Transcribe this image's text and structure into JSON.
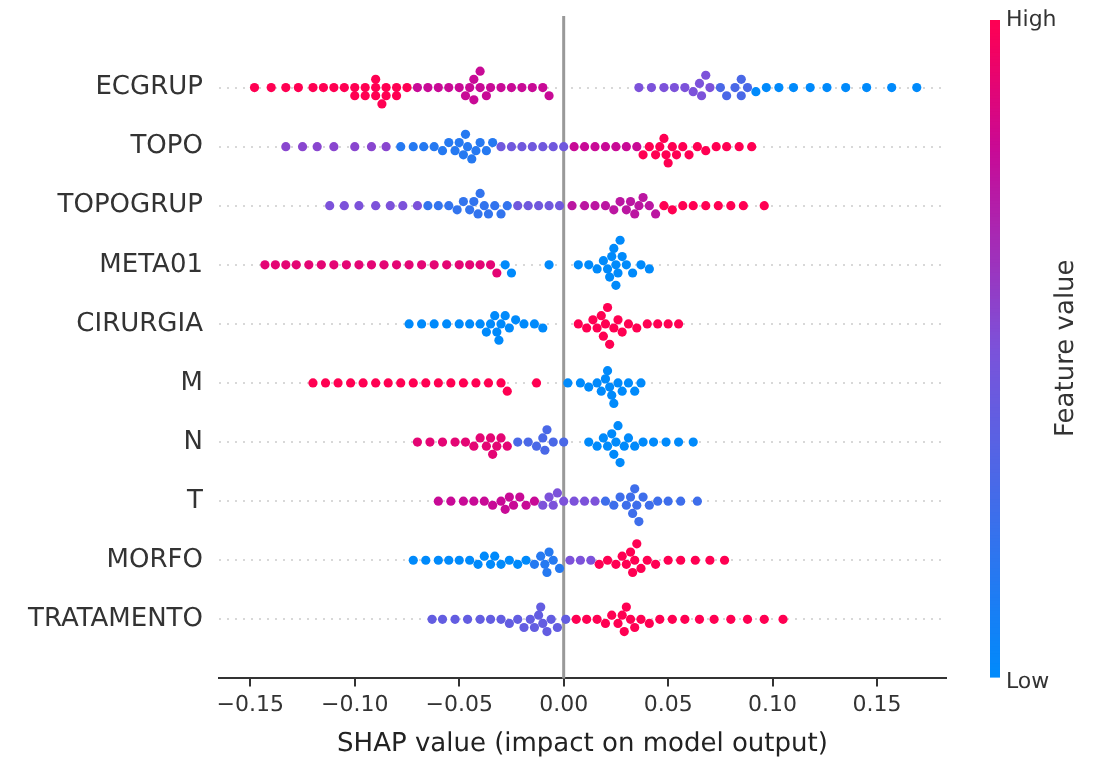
{
  "chart_data": {
    "type": "scatter",
    "orientation": "horizontal",
    "xlabel": "SHAP value (impact on model output)",
    "clabel": "Feature value",
    "categories": [
      "ECGRUP",
      "TOPO",
      "TOPOGRUP",
      "META01",
      "CIRURGIA",
      "M",
      "N",
      "T",
      "MORFO",
      "TRATAMENTO"
    ],
    "xlim": [
      -0.165,
      0.183
    ],
    "xticks": [
      {
        "value": -0.15,
        "label": "−0.15"
      },
      {
        "value": -0.1,
        "label": "−0.10"
      },
      {
        "value": -0.05,
        "label": "−0.05"
      },
      {
        "value": 0,
        "label": "0.00"
      },
      {
        "value": 0.05,
        "label": "0.05"
      },
      {
        "value": 0.1,
        "label": "0.10"
      },
      {
        "value": 0.15,
        "label": "0.15"
      }
    ],
    "clim": [
      0,
      1
    ],
    "cticks": [
      {
        "value": 0,
        "label": "Low"
      },
      {
        "value": 1,
        "label": "High"
      }
    ],
    "grid": "y",
    "legend": false,
    "marker": "circle",
    "ref_lines": [
      {
        "axis": "x",
        "value": 0,
        "color": "#999999"
      }
    ],
    "series": [
      {
        "x": [
          "ECGRUP",
          "ECGRUP",
          "ECGRUP",
          "ECGRUP",
          "ECGRUP",
          "ECGRUP",
          "ECGRUP",
          "ECGRUP",
          "ECGRUP",
          "ECGRUP",
          "ECGRUP",
          "ECGRUP",
          "ECGRUP",
          "ECGRUP",
          "ECGRUP",
          "ECGRUP",
          "ECGRUP",
          "ECGRUP",
          "ECGRUP",
          "ECGRUP",
          "ECGRUP",
          "ECGRUP",
          "ECGRUP",
          "ECGRUP",
          "ECGRUP",
          "ECGRUP",
          "ECGRUP",
          "ECGRUP",
          "ECGRUP",
          "ECGRUP",
          "ECGRUP",
          "ECGRUP",
          "ECGRUP",
          "ECGRUP",
          "ECGRUP",
          "ECGRUP",
          "ECGRUP",
          "ECGRUP",
          "ECGRUP",
          "ECGRUP",
          "ECGRUP",
          "ECGRUP",
          "ECGRUP",
          "ECGRUP",
          "ECGRUP",
          "ECGRUP",
          "ECGRUP",
          "ECGRUP",
          "ECGRUP",
          "ECGRUP",
          "ECGRUP",
          "ECGRUP",
          "ECGRUP",
          "ECGRUP",
          "ECGRUP",
          "ECGRUP",
          "ECGRUP",
          "ECGRUP",
          "ECGRUP",
          "ECGRUP",
          "ECGRUP",
          "ECGRUP",
          "ECGRUP",
          "ECGRUP",
          "ECGRUP",
          "ECGRUP",
          "TOPO",
          "TOPO",
          "TOPO",
          "TOPO",
          "TOPO",
          "TOPO",
          "TOPO",
          "TOPO",
          "TOPO",
          "TOPO",
          "TOPO",
          "TOPO",
          "TOPO",
          "TOPO",
          "TOPO",
          "TOPO",
          "TOPO",
          "TOPO",
          "TOPO",
          "TOPO",
          "TOPO",
          "TOPO",
          "TOPO",
          "TOPO",
          "TOPO",
          "TOPO",
          "TOPO",
          "TOPO",
          "TOPO",
          "TOPO",
          "TOPO",
          "TOPO",
          "TOPO",
          "TOPO",
          "TOPO",
          "TOPO",
          "TOPO",
          "TOPO",
          "TOPO",
          "TOPO",
          "TOPO",
          "TOPO",
          "TOPO",
          "TOPO",
          "TOPO",
          "TOPO",
          "TOPO",
          "TOPO",
          "TOPO",
          "TOPO",
          "TOPO",
          "TOPO",
          "TOPO",
          "TOPO",
          "TOPOGRUP",
          "TOPOGRUP",
          "TOPOGRUP",
          "TOPOGRUP",
          "TOPOGRUP",
          "TOPOGRUP",
          "TOPOGRUP",
          "TOPOGRUP",
          "TOPOGRUP",
          "TOPOGRUP",
          "TOPOGRUP",
          "TOPOGRUP",
          "TOPOGRUP",
          "TOPOGRUP",
          "TOPOGRUP",
          "TOPOGRUP",
          "TOPOGRUP",
          "TOPOGRUP",
          "TOPOGRUP",
          "TOPOGRUP",
          "TOPOGRUP",
          "TOPOGRUP",
          "TOPOGRUP",
          "TOPOGRUP",
          "TOPOGRUP",
          "TOPOGRUP",
          "TOPOGRUP",
          "TOPOGRUP",
          "TOPOGRUP",
          "TOPOGRUP",
          "TOPOGRUP",
          "TOPOGRUP",
          "TOPOGRUP",
          "TOPOGRUP",
          "TOPOGRUP",
          "TOPOGRUP",
          "TOPOGRUP",
          "TOPOGRUP",
          "TOPOGRUP",
          "TOPOGRUP",
          "TOPOGRUP",
          "TOPOGRUP",
          "TOPOGRUP",
          "TOPOGRUP",
          "TOPOGRUP",
          "TOPOGRUP",
          "TOPOGRUP",
          "TOPOGRUP",
          "META01",
          "META01",
          "META01",
          "META01",
          "META01",
          "META01",
          "META01",
          "META01",
          "META01",
          "META01",
          "META01",
          "META01",
          "META01",
          "META01",
          "META01",
          "META01",
          "META01",
          "META01",
          "META01",
          "META01",
          "META01",
          "META01",
          "META01",
          "META01",
          "META01",
          "META01",
          "META01",
          "META01",
          "META01",
          "META01",
          "META01",
          "META01",
          "META01",
          "META01",
          "META01",
          "META01",
          "META01",
          "META01",
          "META01",
          "META01",
          "META01",
          "CIRURGIA",
          "CIRURGIA",
          "CIRURGIA",
          "CIRURGIA",
          "CIRURGIA",
          "CIRURGIA",
          "CIRURGIA",
          "CIRURGIA",
          "CIRURGIA",
          "CIRURGIA",
          "CIRURGIA",
          "CIRURGIA",
          "CIRURGIA",
          "CIRURGIA",
          "CIRURGIA",
          "CIRURGIA",
          "CIRURGIA",
          "CIRURGIA",
          "CIRURGIA",
          "CIRURGIA",
          "CIRURGIA",
          "CIRURGIA",
          "CIRURGIA",
          "CIRURGIA",
          "CIRURGIA",
          "CIRURGIA",
          "CIRURGIA",
          "CIRURGIA",
          "CIRURGIA",
          "CIRURGIA",
          "CIRURGIA",
          "CIRURGIA",
          "CIRURGIA",
          "CIRURGIA",
          "CIRURGIA",
          "CIRURGIA",
          "CIRURGIA",
          "M",
          "M",
          "M",
          "M",
          "M",
          "M",
          "M",
          "M",
          "M",
          "M",
          "M",
          "M",
          "M",
          "M",
          "M",
          "M",
          "M",
          "M",
          "M",
          "M",
          "M",
          "M",
          "M",
          "M",
          "M",
          "M",
          "M",
          "M",
          "M",
          "M",
          "M",
          "M",
          "M",
          "N",
          "N",
          "N",
          "N",
          "N",
          "N",
          "N",
          "N",
          "N",
          "N",
          "N",
          "N",
          "N",
          "N",
          "N",
          "N",
          "N",
          "N",
          "N",
          "N",
          "N",
          "N",
          "N",
          "N",
          "N",
          "N",
          "N",
          "N",
          "N",
          "N",
          "N",
          "N",
          "N",
          "N",
          "N",
          "N",
          "N",
          "N",
          "T",
          "T",
          "T",
          "T",
          "T",
          "T",
          "T",
          "T",
          "T",
          "T",
          "T",
          "T",
          "T",
          "T",
          "T",
          "T",
          "T",
          "T",
          "T",
          "T",
          "T",
          "T",
          "T",
          "T",
          "T",
          "T",
          "T",
          "T",
          "T",
          "T",
          "T",
          "T",
          "T",
          "T",
          "T",
          "T",
          "MORFO",
          "MORFO",
          "MORFO",
          "MORFO",
          "MORFO",
          "MORFO",
          "MORFO",
          "MORFO",
          "MORFO",
          "MORFO",
          "MORFO",
          "MORFO",
          "MORFO",
          "MORFO",
          "MORFO",
          "MORFO",
          "MORFO",
          "MORFO",
          "MORFO",
          "MORFO",
          "MORFO",
          "MORFO",
          "MORFO",
          "MORFO",
          "MORFO",
          "MORFO",
          "MORFO",
          "MORFO",
          "MORFO",
          "MORFO",
          "MORFO",
          "MORFO",
          "MORFO",
          "MORFO",
          "MORFO",
          "MORFO",
          "MORFO",
          "MORFO",
          "MORFO",
          "MORFO",
          "MORFO",
          "TRATAMENTO",
          "TRATAMENTO",
          "TRATAMENTO",
          "TRATAMENTO",
          "TRATAMENTO",
          "TRATAMENTO",
          "TRATAMENTO",
          "TRATAMENTO",
          "TRATAMENTO",
          "TRATAMENTO",
          "TRATAMENTO",
          "TRATAMENTO",
          "TRATAMENTO",
          "TRATAMENTO",
          "TRATAMENTO",
          "TRATAMENTO",
          "TRATAMENTO",
          "TRATAMENTO",
          "TRATAMENTO",
          "TRATAMENTO",
          "TRATAMENTO",
          "TRATAMENTO",
          "TRATAMENTO",
          "TRATAMENTO",
          "TRATAMENTO",
          "TRATAMENTO",
          "TRATAMENTO",
          "TRATAMENTO",
          "TRATAMENTO",
          "TRATAMENTO",
          "TRATAMENTO",
          "TRATAMENTO",
          "TRATAMENTO",
          "TRATAMENTO",
          "TRATAMENTO",
          "TRATAMENTO",
          "TRATAMENTO",
          "TRATAMENTO",
          "TRATAMENTO",
          "TRATAMENTO",
          "TRATAMENTO"
        ],
        "values": [
          -0.148,
          -0.14,
          -0.133,
          -0.127,
          -0.12,
          -0.115,
          -0.11,
          -0.105,
          -0.1,
          -0.1,
          -0.095,
          -0.095,
          -0.09,
          -0.09,
          -0.09,
          -0.087,
          -0.085,
          -0.085,
          -0.08,
          -0.08,
          -0.075,
          -0.07,
          -0.065,
          -0.06,
          -0.055,
          -0.05,
          -0.047,
          -0.045,
          -0.043,
          -0.043,
          -0.04,
          -0.04,
          -0.037,
          -0.035,
          -0.03,
          -0.025,
          -0.02,
          -0.015,
          -0.01,
          -0.007,
          0.036,
          0.042,
          0.048,
          0.053,
          0.058,
          0.062,
          0.065,
          0.066,
          0.068,
          0.07,
          0.075,
          0.078,
          0.082,
          0.085,
          0.085,
          0.088,
          0.092,
          0.097,
          0.103,
          0.11,
          0.118,
          0.126,
          0.135,
          0.145,
          0.157,
          0.169,
          -0.133,
          -0.125,
          -0.118,
          -0.11,
          -0.1,
          -0.092,
          -0.085,
          -0.078,
          -0.072,
          -0.067,
          -0.062,
          -0.058,
          -0.055,
          -0.052,
          -0.05,
          -0.048,
          -0.047,
          -0.046,
          -0.044,
          -0.042,
          -0.04,
          -0.037,
          -0.034,
          -0.03,
          -0.025,
          -0.02,
          -0.015,
          -0.01,
          -0.005,
          0,
          0.005,
          0.01,
          0.015,
          0.02,
          0.025,
          0.03,
          0.035,
          0.038,
          0.041,
          0.044,
          0.046,
          0.048,
          0.049,
          0.05,
          0.052,
          0.054,
          0.057,
          0.06,
          0.064,
          0.068,
          0.073,
          0.078,
          0.084,
          0.09,
          -0.112,
          -0.105,
          -0.098,
          -0.09,
          -0.083,
          -0.077,
          -0.07,
          -0.065,
          -0.06,
          -0.055,
          -0.051,
          -0.048,
          -0.045,
          -0.043,
          -0.041,
          -0.04,
          -0.038,
          -0.036,
          -0.033,
          -0.03,
          -0.027,
          -0.022,
          -0.017,
          -0.012,
          -0.007,
          -0.002,
          0.004,
          0.01,
          0.015,
          0.02,
          0.024,
          0.027,
          0.03,
          0.032,
          0.034,
          0.036,
          0.038,
          0.041,
          0.044,
          0.048,
          0.052,
          0.057,
          0.062,
          0.068,
          0.074,
          0.08,
          0.086,
          0.096,
          -0.143,
          -0.138,
          -0.133,
          -0.128,
          -0.122,
          -0.116,
          -0.11,
          -0.104,
          -0.098,
          -0.092,
          -0.086,
          -0.08,
          -0.074,
          -0.068,
          -0.062,
          -0.056,
          -0.05,
          -0.045,
          -0.04,
          -0.035,
          -0.032,
          -0.028,
          -0.025,
          -0.007,
          0.007,
          0.012,
          0.016,
          0.019,
          0.021,
          0.022,
          0.023,
          0.024,
          0.025,
          0.025,
          0.026,
          0.027,
          0.028,
          0.03,
          0.033,
          0.037,
          0.041,
          -0.074,
          -0.068,
          -0.062,
          -0.056,
          -0.05,
          -0.045,
          -0.04,
          -0.037,
          -0.035,
          -0.033,
          -0.032,
          -0.031,
          -0.03,
          -0.028,
          -0.026,
          -0.023,
          -0.019,
          -0.014,
          -0.01,
          0.007,
          0.011,
          0.014,
          0.016,
          0.018,
          0.019,
          0.02,
          0.021,
          0.022,
          0.024,
          0.026,
          0.028,
          0.031,
          0.035,
          0.04,
          0.045,
          0.05,
          0.055,
          -0.12,
          -0.114,
          -0.108,
          -0.102,
          -0.096,
          -0.09,
          -0.084,
          -0.078,
          -0.072,
          -0.066,
          -0.06,
          -0.054,
          -0.048,
          -0.042,
          -0.036,
          -0.03,
          -0.027,
          -0.013,
          0.002,
          0.008,
          0.012,
          0.016,
          0.018,
          0.02,
          0.021,
          0.022,
          0.023,
          0.024,
          0.026,
          0.028,
          0.031,
          0.034,
          0.037,
          -0.07,
          -0.064,
          -0.058,
          -0.052,
          -0.047,
          -0.043,
          -0.04,
          -0.037,
          -0.035,
          -0.034,
          -0.032,
          -0.03,
          -0.027,
          -0.022,
          -0.017,
          -0.013,
          -0.01,
          -0.009,
          -0.008,
          -0.005,
          0,
          0.012,
          0.016,
          0.019,
          0.021,
          0.023,
          0.024,
          0.025,
          0.026,
          0.027,
          0.029,
          0.031,
          0.034,
          0.038,
          0.043,
          0.049,
          0.055,
          0.062,
          -0.06,
          -0.054,
          -0.048,
          -0.043,
          -0.038,
          -0.034,
          -0.03,
          -0.028,
          -0.026,
          -0.024,
          -0.021,
          -0.018,
          -0.014,
          -0.01,
          -0.007,
          -0.005,
          -0.003,
          0,
          0.005,
          0.01,
          0.015,
          0.02,
          0.024,
          0.027,
          0.03,
          0.032,
          0.033,
          0.034,
          0.035,
          0.036,
          0.038,
          0.041,
          0.045,
          0.05,
          0.056,
          0.064,
          -0.072,
          -0.066,
          -0.06,
          -0.055,
          -0.05,
          -0.045,
          -0.041,
          -0.038,
          -0.035,
          -0.033,
          -0.03,
          -0.026,
          -0.022,
          -0.018,
          -0.014,
          -0.011,
          -0.009,
          -0.008,
          -0.007,
          -0.005,
          -0.002,
          0.003,
          0.008,
          0.013,
          0.017,
          0.021,
          0.025,
          0.028,
          0.03,
          0.032,
          0.033,
          0.034,
          0.035,
          0.037,
          0.04,
          0.044,
          0.05,
          0.056,
          0.063,
          0.07,
          0.077,
          -0.063,
          -0.058,
          -0.052,
          -0.046,
          -0.04,
          -0.035,
          -0.03,
          -0.026,
          -0.022,
          -0.019,
          -0.016,
          -0.014,
          -0.012,
          -0.011,
          -0.01,
          -0.008,
          -0.006,
          -0.003,
          0.001,
          0.006,
          0.011,
          0.016,
          0.02,
          0.023,
          0.026,
          0.028,
          0.029,
          0.03,
          0.032,
          0.034,
          0.037,
          0.041,
          0.046,
          0.052,
          0.058,
          0.065,
          0.072,
          0.08,
          0.088,
          0.096,
          0.105
        ],
        "cvalues": [
          1,
          1,
          1,
          1,
          1,
          1,
          1,
          1,
          1,
          1,
          1,
          1,
          1,
          1,
          1,
          1,
          1,
          1,
          1,
          1,
          1,
          0.8,
          0.8,
          0.8,
          0.8,
          0.8,
          0.8,
          0.8,
          0.8,
          0.8,
          0.8,
          0.8,
          0.8,
          0.8,
          0.8,
          0.8,
          0.8,
          0.8,
          0.8,
          0.8,
          0.5,
          0.5,
          0.5,
          0.5,
          0.5,
          0.5,
          0.5,
          0.5,
          0.5,
          0.5,
          0.3,
          0.3,
          0.3,
          0.3,
          0.3,
          0.3,
          0,
          0,
          0,
          0,
          0,
          0,
          0,
          0,
          0,
          0,
          0.55,
          0.55,
          0.55,
          0.55,
          0.55,
          0.55,
          0.55,
          0.15,
          0.15,
          0.15,
          0.15,
          0.15,
          0.15,
          0.15,
          0.15,
          0.15,
          0.15,
          0.15,
          0.15,
          0.15,
          0.15,
          0.15,
          0.15,
          0.45,
          0.45,
          0.45,
          0.45,
          0.45,
          0.45,
          0.45,
          0.8,
          0.8,
          0.8,
          0.8,
          0.8,
          0.8,
          0.8,
          1,
          1,
          1,
          1,
          1,
          1,
          1,
          1,
          1,
          1,
          1,
          1,
          1,
          1,
          1,
          1,
          1,
          0.5,
          0.5,
          0.5,
          0.5,
          0.5,
          0.5,
          0.5,
          0.2,
          0.2,
          0.2,
          0.2,
          0.2,
          0.2,
          0.2,
          0.2,
          0.2,
          0.2,
          0.2,
          0.2,
          0.2,
          0.2,
          0.45,
          0.45,
          0.45,
          0.45,
          0.45,
          0.75,
          0.75,
          0.75,
          0.75,
          0.75,
          0.75,
          0.75,
          0.75,
          0.75,
          0.75,
          0.75,
          0.75,
          0.75,
          1,
          1,
          1,
          1,
          1,
          1,
          1,
          1,
          1,
          0.9,
          0.9,
          0.9,
          0.9,
          0.9,
          0.9,
          0.9,
          0.9,
          0.9,
          0.9,
          0.9,
          0.9,
          0.9,
          0.9,
          0.9,
          0.9,
          0.9,
          0.9,
          0.9,
          0.9,
          0.9,
          0,
          0,
          0,
          0,
          0,
          0,
          0,
          0,
          0,
          0,
          0,
          0,
          0,
          0,
          0,
          0,
          0,
          0,
          0,
          0,
          0,
          0,
          0,
          0,
          0,
          0,
          0,
          0,
          0,
          0,
          0,
          0,
          0,
          0,
          0,
          0,
          0,
          0,
          0,
          1,
          1,
          1,
          1,
          1,
          1,
          1,
          1,
          1,
          1,
          1,
          1,
          1,
          1,
          1,
          1,
          1,
          1,
          1,
          1,
          1,
          1,
          1,
          1,
          1,
          1,
          1,
          1,
          1,
          1,
          1,
          1,
          1,
          1,
          1,
          1,
          0,
          0,
          0,
          0,
          0,
          0,
          0,
          0,
          0,
          0,
          0,
          0,
          0,
          0,
          0,
          0.9,
          0.9,
          0.9,
          0.9,
          0.9,
          0.9,
          0.9,
          0.9,
          0.9,
          0.9,
          0.9,
          0.9,
          0.9,
          0.3,
          0.3,
          0.3,
          0.3,
          0.3,
          0.3,
          0.3,
          0.3,
          0,
          0,
          0,
          0,
          0,
          0,
          0,
          0,
          0,
          0,
          0,
          0,
          0,
          0,
          0,
          0,
          0,
          0.8,
          0.8,
          0.8,
          0.8,
          0.8,
          0.8,
          0.8,
          0.8,
          0.8,
          0.8,
          0.8,
          0.8,
          0.8,
          0.5,
          0.5,
          0.5,
          0.5,
          0.5,
          0.5,
          0.5,
          0.5,
          0.25,
          0.25,
          0.25,
          0.25,
          0.25,
          0.25,
          0.25,
          0.25,
          0.25,
          0.25,
          0.25,
          0.25,
          0.25,
          0.25,
          0.25,
          0,
          0,
          0,
          0,
          0,
          0,
          0,
          0,
          0,
          0,
          0,
          0,
          0,
          0,
          0.15,
          0.15,
          0.15,
          0.15,
          0.15,
          0.15,
          0.15,
          0.5,
          0.5,
          0.5,
          1,
          1,
          1,
          1,
          1,
          1,
          1,
          1,
          1,
          1,
          1,
          1,
          1,
          1,
          1,
          1,
          1,
          0.4,
          0.4,
          0.4,
          0.4,
          0.4,
          0.4,
          0.4,
          0.4,
          0.4,
          0.4,
          0.4,
          0.4,
          0.4,
          0.4,
          0.4,
          0.4,
          0.4,
          0.4,
          0.4,
          1,
          1,
          1,
          1,
          1,
          1,
          1,
          1,
          1,
          1,
          1,
          1,
          1,
          1,
          1,
          1,
          1,
          1,
          1,
          1,
          1,
          1
        ]
      }
    ]
  }
}
